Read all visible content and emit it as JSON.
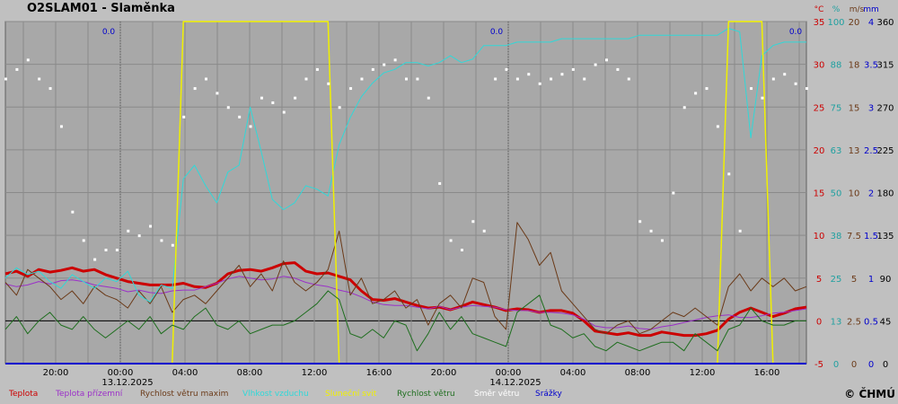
{
  "chart_data": {
    "type": "line",
    "title": "O2SLAM01 - Slaměnka",
    "x_tick_labels": [
      "20:00",
      "00:00",
      "04:00",
      "08:00",
      "12:00",
      "16:00",
      "20:00",
      "00:00",
      "04:00",
      "08:00",
      "12:00",
      "16:00"
    ],
    "date_labels": [
      "13.12.2025",
      "14.12.2025"
    ],
    "zero_labels": [
      "0.0",
      "0.0",
      "0.0"
    ],
    "units": [
      "°C",
      "%",
      "m/s",
      "mm"
    ],
    "y_axes": {
      "temperature_c": [
        35,
        30,
        25,
        20,
        15,
        10,
        5,
        0,
        -5
      ],
      "humidity_pct": [
        100,
        88,
        75,
        63,
        50,
        38,
        25,
        13,
        0
      ],
      "wind_max_ms": [
        20,
        18,
        15,
        13,
        10,
        7.5,
        5,
        2.5,
        0
      ],
      "precip_mm": [
        4,
        3.5,
        3,
        2.5,
        2,
        1.5,
        1,
        0.5,
        0
      ],
      "wind_dir_deg": [
        360,
        315,
        270,
        225,
        180,
        135,
        90,
        45,
        0
      ]
    },
    "ylim_temperature": [
      -5,
      35
    ],
    "series": [
      {
        "name": "Teplota",
        "color": "#cc0000",
        "width": 3,
        "axis": "temp",
        "values": [
          5.5,
          5.8,
          5.2,
          6.0,
          5.7,
          5.9,
          6.2,
          5.8,
          6.0,
          5.4,
          5.0,
          4.6,
          4.4,
          4.2,
          4.2,
          4.2,
          4.4,
          4.0,
          3.9,
          4.4,
          5.5,
          5.9,
          6.0,
          5.8,
          6.2,
          6.7,
          6.8,
          5.8,
          5.5,
          5.6,
          5.2,
          4.8,
          3.5,
          2.5,
          2.4,
          2.6,
          2.2,
          1.8,
          1.5,
          1.6,
          1.3,
          1.7,
          2.2,
          1.9,
          1.6,
          1.2,
          1.4,
          1.3,
          1.0,
          1.2,
          1.2,
          0.9,
          0.0,
          -1.2,
          -1.4,
          -1.6,
          -1.4,
          -1.7,
          -1.7,
          -1.3,
          -1.5,
          -1.7,
          -1.7,
          -1.5,
          -1.1,
          0.2,
          1.0,
          1.5,
          1.0,
          0.5,
          0.9,
          1.4,
          1.6
        ]
      },
      {
        "name": "Teplota přízemní",
        "color": "#9b30c8",
        "width": 1,
        "axis": "temp",
        "values": [
          4.3,
          4.0,
          4.2,
          4.6,
          4.3,
          4.7,
          4.8,
          4.6,
          4.2,
          4.0,
          3.8,
          3.4,
          3.6,
          3.3,
          3.2,
          3.5,
          3.6,
          3.6,
          4.0,
          4.4,
          4.9,
          5.2,
          5.0,
          4.8,
          4.9,
          5.2,
          5.0,
          4.5,
          4.2,
          4.0,
          3.6,
          3.3,
          2.8,
          2.2,
          1.9,
          1.8,
          1.8,
          1.6,
          1.4,
          1.7,
          1.3,
          1.6,
          1.8,
          1.7,
          1.6,
          1.3,
          1.2,
          1.2,
          1.0,
          1.0,
          0.9,
          0.7,
          0.2,
          -0.6,
          -0.8,
          -0.8,
          -0.6,
          -0.9,
          -1.0,
          -0.7,
          -0.5,
          -0.2,
          0.1,
          0.4,
          0.6,
          0.7,
          0.4,
          0.4,
          0.6,
          0.9,
          1.0,
          1.2,
          1.4
        ]
      },
      {
        "name": "Rychlost větru maxim",
        "color": "#6b3a18",
        "width": 1,
        "axis": "temp",
        "values": [
          4.5,
          3.0,
          6.0,
          5.0,
          4.0,
          2.5,
          3.5,
          2.0,
          4.0,
          3.0,
          2.5,
          1.5,
          3.5,
          2.0,
          4.0,
          1.0,
          2.5,
          3.0,
          2.0,
          3.5,
          5.0,
          6.5,
          4.0,
          5.5,
          3.5,
          7.0,
          4.5,
          3.5,
          4.5,
          6.0,
          10.5,
          3.0,
          5.0,
          2.0,
          2.5,
          3.5,
          1.5,
          2.5,
          -0.5,
          2.0,
          3.0,
          1.5,
          5.0,
          4.5,
          0.5,
          -1.0,
          11.5,
          9.5,
          6.5,
          8.0,
          3.5,
          2.0,
          0.5,
          -1.0,
          -1.5,
          -0.5,
          0.0,
          -1.5,
          -1.0,
          0.0,
          1.0,
          0.5,
          1.5,
          0.5,
          -0.5,
          4.0,
          5.5,
          3.5,
          5.0,
          4.0,
          5.0,
          3.5,
          4.0
        ]
      },
      {
        "name": "Vlhkost vzduchu",
        "color": "#30d8d8",
        "width": 1,
        "axis": "hum",
        "values": [
          25,
          28,
          26,
          27,
          24,
          22,
          26,
          24,
          22,
          25,
          24,
          27,
          20,
          18,
          23,
          22,
          54,
          58,
          52,
          47,
          56,
          58,
          75,
          62,
          48,
          45,
          47,
          52,
          51,
          49,
          64,
          72,
          78,
          82,
          85,
          86,
          88,
          88,
          87,
          88,
          90,
          88,
          89,
          93,
          93,
          93,
          94,
          94,
          94,
          94,
          95,
          95,
          95,
          95,
          95,
          95,
          95,
          96,
          96,
          96,
          96,
          96,
          96,
          96,
          96,
          98,
          97,
          66,
          90,
          93,
          94,
          94,
          94
        ]
      },
      {
        "name": "Sluneční svit",
        "color": "#f0f000",
        "width": 1.5,
        "axis": "temp",
        "values": [
          -5,
          -5,
          -5,
          -5,
          -5,
          -5,
          -5,
          -5,
          -5,
          -5,
          -5,
          -5,
          -5,
          -5,
          -5,
          -5,
          35,
          35,
          35,
          35,
          35,
          35,
          35,
          35,
          35,
          35,
          35,
          35,
          35,
          35,
          -5,
          -5,
          -5,
          -5,
          -5,
          -5,
          -5,
          -5,
          -5,
          -5,
          -5,
          -5,
          -5,
          -5,
          -5,
          -5,
          -5,
          -5,
          -5,
          -5,
          -5,
          -5,
          -5,
          -5,
          -5,
          -5,
          -5,
          -5,
          -5,
          -5,
          -5,
          -5,
          -5,
          -5,
          -5,
          35,
          35,
          35,
          35,
          -5,
          -5,
          -5,
          -5
        ]
      },
      {
        "name": "Rychlost větru",
        "color": "#1e6e1e",
        "width": 1,
        "axis": "temp",
        "values": [
          -1.0,
          0.5,
          -1.5,
          0.0,
          1.0,
          -0.5,
          -1.0,
          0.5,
          -1.0,
          -2.0,
          -1.0,
          0.0,
          -1.0,
          0.5,
          -1.5,
          -0.5,
          -1.0,
          0.5,
          1.5,
          -0.5,
          -1.0,
          0.0,
          -1.5,
          -1.0,
          -0.5,
          -0.5,
          0.0,
          1.0,
          2.0,
          3.5,
          2.5,
          -1.5,
          -2.0,
          -1.0,
          -2.0,
          0.0,
          -0.5,
          -3.5,
          -1.5,
          1.0,
          -1.0,
          0.5,
          -1.5,
          -2.0,
          -2.5,
          -3.0,
          1.0,
          2.0,
          3.0,
          -0.5,
          -1.0,
          -2.0,
          -1.5,
          -3.0,
          -3.5,
          -2.5,
          -3.0,
          -3.5,
          -3.0,
          -2.5,
          -2.5,
          -3.5,
          -1.5,
          -2.5,
          -3.5,
          -1.0,
          -0.5,
          1.5,
          0.0,
          -0.5,
          -0.5,
          0.0,
          0.0
        ]
      },
      {
        "name": "Srážky",
        "color": "#0000cc",
        "width": 2,
        "axis": "precip",
        "values": [
          0,
          0,
          0,
          0,
          0,
          0,
          0,
          0,
          0,
          0,
          0,
          0,
          0,
          0,
          0,
          0,
          0,
          0,
          0,
          0,
          0,
          0,
          0,
          0,
          0,
          0,
          0,
          0,
          0,
          0,
          0,
          0,
          0,
          0,
          0,
          0,
          0,
          0,
          0,
          0,
          0,
          0,
          0,
          0,
          0,
          0,
          0,
          0,
          0,
          0,
          0,
          0,
          0,
          0,
          0,
          0,
          0,
          0,
          0,
          0,
          0,
          0,
          0,
          0,
          0,
          0,
          0,
          0,
          0,
          0,
          0,
          0,
          0
        ]
      }
    ],
    "wind_direction": {
      "name": "Směr větru",
      "color": "#ffffff",
      "axis": "dir",
      "values": [
        300,
        310,
        320,
        300,
        290,
        250,
        160,
        130,
        110,
        120,
        120,
        140,
        135,
        145,
        130,
        125,
        260,
        290,
        300,
        285,
        270,
        260,
        250,
        280,
        275,
        265,
        280,
        300,
        310,
        295,
        270,
        290,
        300,
        310,
        315,
        320,
        300,
        300,
        280,
        190,
        130,
        120,
        150,
        140,
        300,
        310,
        300,
        305,
        295,
        300,
        305,
        310,
        300,
        315,
        320,
        310,
        300,
        150,
        140,
        130,
        180,
        270,
        285,
        290,
        250,
        200,
        140,
        290,
        280,
        300,
        305,
        295,
        290
      ]
    }
  },
  "legend": {
    "items": [
      {
        "label": "Teplota",
        "color": "#cc0000"
      },
      {
        "label": "Teplota přízemní",
        "color": "#9b30c8"
      },
      {
        "label": "Rychlost větru maxim",
        "color": "#6b3a18"
      },
      {
        "label": "Vlhkost vzduchu",
        "color": "#30d8d8"
      },
      {
        "label": "Sluneční svit",
        "color": "#f0f000"
      },
      {
        "label": "Rychlost větru",
        "color": "#1e6e1e"
      },
      {
        "label": "Směr  větru",
        "color": "#ffffff"
      },
      {
        "label": "Srážky",
        "color": "#0000cc"
      }
    ],
    "copyright": "© ČHMÚ"
  }
}
